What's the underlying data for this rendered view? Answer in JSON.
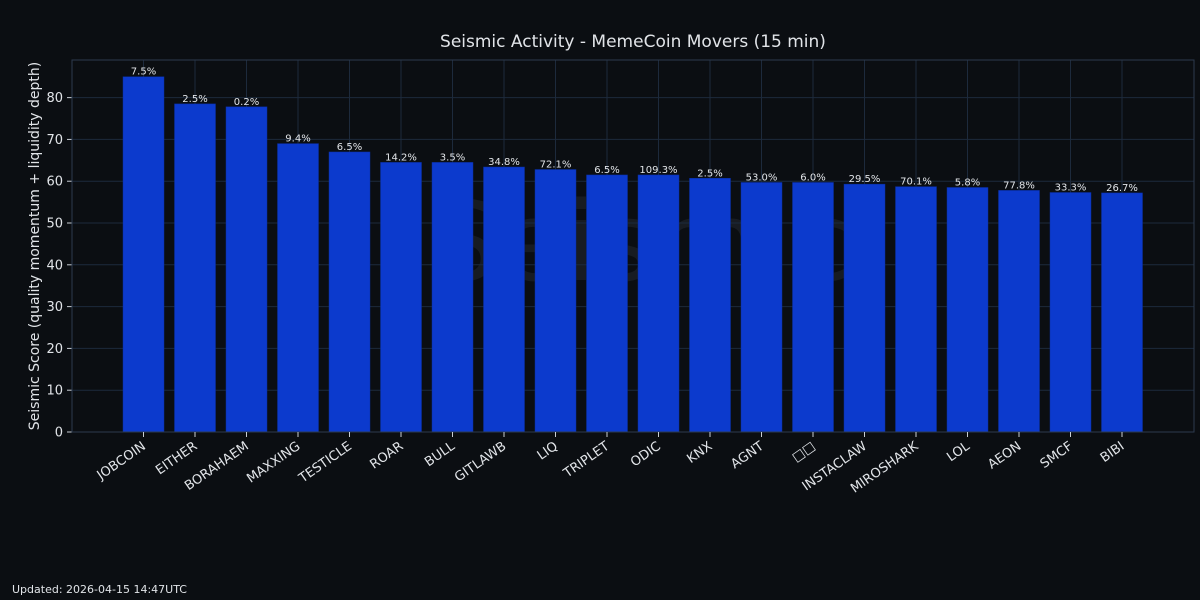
{
  "colors": {
    "background": "#0b0e12",
    "bar": "#0c3acd",
    "grid": "#1d2a3c",
    "text": "#e1e4e8"
  },
  "chart_data": {
    "type": "bar",
    "title": "Seismic Activity - MemeCoin Movers (15 min)",
    "xlabel": "",
    "ylabel": "Seismic Score (quality momentum + liquidity depth)",
    "ylim": [
      0,
      89
    ],
    "yticks": [
      0,
      10,
      20,
      30,
      40,
      50,
      60,
      70,
      80
    ],
    "grid": true,
    "categories": [
      "JOBCOIN",
      "EITHER",
      "BORAHAEM",
      "MAXXING",
      "TESTICLE",
      "ROAR",
      "BULL",
      "GITLAWB",
      "LIQ",
      "TRIPLET",
      "ODIC",
      "KNX",
      "AGNT",
      "□□",
      "INSTACLAW",
      "MIROSHARK",
      "LOL",
      "AEON",
      "SMCF",
      "BIBI"
    ],
    "values": [
      85,
      78.5,
      77.8,
      69,
      67,
      64.5,
      64.5,
      63.4,
      62.8,
      61.5,
      61.5,
      60.7,
      59.7,
      59.7,
      59.3,
      58.7,
      58.5,
      57.8,
      57.3,
      57.2
    ],
    "labels": [
      "7.5%",
      "2.5%",
      "0.2%",
      "9.4%",
      "6.5%",
      "14.2%",
      "3.5%",
      "34.8%",
      "72.1%",
      "6.5%",
      "109.3%",
      "2.5%",
      "53.0%",
      "6.0%",
      "29.5%",
      "70.1%",
      "5.8%",
      "77.8%",
      "33.3%",
      "26.7%"
    ]
  },
  "footer": {
    "updated": "Updated: 2026-04-15 14:47UTC"
  }
}
